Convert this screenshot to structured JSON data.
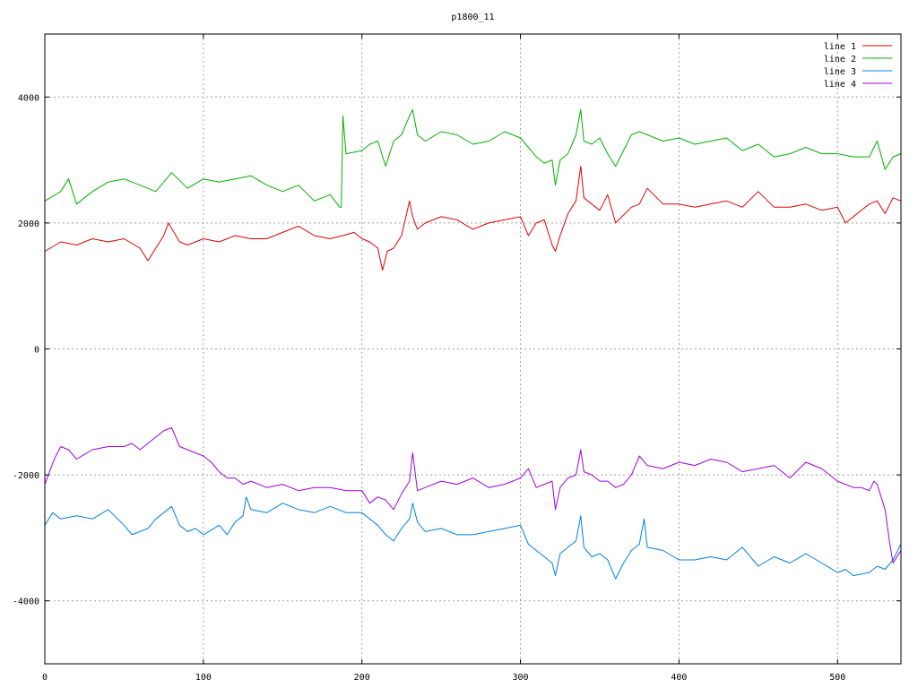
{
  "chart_data": {
    "type": "line",
    "title": "p1800_11",
    "xlabel": "",
    "ylabel": "",
    "xlim": [
      0,
      540
    ],
    "ylim": [
      -5000,
      5000
    ],
    "xticks": [
      0,
      100,
      200,
      300,
      400,
      500
    ],
    "yticks": [
      -4000,
      -2000,
      0,
      2000,
      4000
    ],
    "xtick_labels": [
      "0",
      "100",
      "200",
      "300",
      "400",
      "500"
    ],
    "ytick_labels": [
      "-4000",
      "-2000",
      "0",
      "2000",
      "4000"
    ],
    "grid": true,
    "legend_position": "top-right",
    "series": [
      {
        "name": "line 1",
        "color": "#e00000",
        "x": [
          0,
          10,
          20,
          30,
          40,
          50,
          60,
          65,
          70,
          75,
          78,
          85,
          90,
          100,
          110,
          120,
          130,
          140,
          150,
          160,
          170,
          180,
          188,
          195,
          200,
          205,
          210,
          213,
          216,
          220,
          225,
          230,
          232,
          235,
          240,
          250,
          260,
          270,
          280,
          290,
          300,
          305,
          310,
          315,
          320,
          322,
          325,
          330,
          335,
          338,
          340,
          345,
          350,
          355,
          360,
          370,
          375,
          380,
          390,
          400,
          410,
          420,
          430,
          440,
          450,
          460,
          470,
          480,
          490,
          500,
          505,
          510,
          520,
          525,
          530,
          535,
          540
        ],
        "y": [
          1550,
          1700,
          1650,
          1750,
          1700,
          1750,
          1600,
          1400,
          1600,
          1800,
          2000,
          1700,
          1650,
          1750,
          1700,
          1800,
          1750,
          1750,
          1850,
          1950,
          1800,
          1750,
          1800,
          1850,
          1750,
          1700,
          1600,
          1250,
          1550,
          1600,
          1800,
          2350,
          2100,
          1900,
          2000,
          2100,
          2050,
          1900,
          2000,
          2050,
          2100,
          1800,
          2000,
          2050,
          1650,
          1550,
          1800,
          2150,
          2350,
          2900,
          2400,
          2300,
          2200,
          2450,
          2000,
          2250,
          2300,
          2550,
          2300,
          2300,
          2250,
          2300,
          2350,
          2250,
          2500,
          2250,
          2250,
          2300,
          2200,
          2250,
          2000,
          2100,
          2300,
          2350,
          2150,
          2400,
          2350
        ]
      },
      {
        "name": "line 2",
        "color": "#00b000",
        "x": [
          0,
          10,
          15,
          20,
          30,
          40,
          50,
          60,
          70,
          80,
          90,
          100,
          110,
          120,
          130,
          140,
          150,
          160,
          170,
          180,
          186,
          187,
          188,
          190,
          200,
          205,
          210,
          215,
          220,
          225,
          230,
          232,
          235,
          240,
          250,
          260,
          270,
          280,
          290,
          300,
          310,
          315,
          320,
          322,
          325,
          330,
          335,
          338,
          340,
          345,
          350,
          355,
          360,
          370,
          375,
          380,
          390,
          400,
          410,
          420,
          430,
          440,
          450,
          460,
          470,
          480,
          490,
          500,
          510,
          520,
          525,
          530,
          535,
          540
        ],
        "y": [
          2350,
          2500,
          2700,
          2300,
          2500,
          2650,
          2700,
          2600,
          2500,
          2800,
          2550,
          2700,
          2650,
          2700,
          2750,
          2600,
          2500,
          2600,
          2350,
          2450,
          2250,
          2250,
          3700,
          3100,
          3150,
          3250,
          3300,
          2900,
          3300,
          3400,
          3700,
          3800,
          3400,
          3300,
          3450,
          3400,
          3250,
          3300,
          3450,
          3350,
          3050,
          2950,
          3000,
          2600,
          3000,
          3100,
          3400,
          3800,
          3300,
          3250,
          3350,
          3100,
          2900,
          3400,
          3450,
          3400,
          3300,
          3350,
          3250,
          3300,
          3350,
          3150,
          3250,
          3050,
          3100,
          3200,
          3100,
          3100,
          3050,
          3050,
          3300,
          2850,
          3050,
          3100
        ]
      },
      {
        "name": "line 3",
        "color": "#0080e0",
        "x": [
          0,
          5,
          10,
          20,
          30,
          40,
          50,
          55,
          60,
          65,
          70,
          75,
          80,
          85,
          90,
          95,
          100,
          110,
          115,
          120,
          125,
          127,
          130,
          140,
          150,
          160,
          170,
          180,
          190,
          200,
          205,
          210,
          215,
          220,
          225,
          230,
          232,
          235,
          240,
          250,
          260,
          270,
          280,
          290,
          300,
          305,
          310,
          315,
          320,
          322,
          325,
          330,
          335,
          338,
          340,
          345,
          350,
          355,
          360,
          365,
          370,
          375,
          378,
          380,
          390,
          400,
          410,
          420,
          430,
          440,
          450,
          460,
          470,
          480,
          490,
          500,
          505,
          510,
          520,
          525,
          530,
          535,
          540
        ],
        "y": [
          -2800,
          -2600,
          -2700,
          -2650,
          -2700,
          -2550,
          -2800,
          -2950,
          -2900,
          -2850,
          -2700,
          -2600,
          -2500,
          -2800,
          -2900,
          -2850,
          -2950,
          -2800,
          -2950,
          -2750,
          -2650,
          -2350,
          -2550,
          -2600,
          -2450,
          -2550,
          -2600,
          -2500,
          -2600,
          -2600,
          -2700,
          -2800,
          -2950,
          -3050,
          -2850,
          -2700,
          -2450,
          -2750,
          -2900,
          -2850,
          -2950,
          -2950,
          -2900,
          -2850,
          -2800,
          -3100,
          -3200,
          -3300,
          -3400,
          -3600,
          -3250,
          -3150,
          -3050,
          -2650,
          -3150,
          -3300,
          -3250,
          -3350,
          -3650,
          -3400,
          -3200,
          -3100,
          -2700,
          -3150,
          -3200,
          -3350,
          -3350,
          -3300,
          -3350,
          -3150,
          -3450,
          -3300,
          -3400,
          -3250,
          -3400,
          -3550,
          -3500,
          -3600,
          -3550,
          -3450,
          -3500,
          -3350,
          -3100
        ]
      },
      {
        "name": "line 4",
        "color": "#a000e0",
        "x": [
          0,
          3,
          6,
          10,
          15,
          20,
          30,
          40,
          50,
          55,
          60,
          65,
          70,
          75,
          80,
          85,
          90,
          95,
          100,
          105,
          110,
          115,
          120,
          125,
          130,
          140,
          150,
          160,
          170,
          180,
          190,
          200,
          205,
          210,
          215,
          220,
          225,
          230,
          232,
          235,
          240,
          250,
          260,
          270,
          280,
          290,
          300,
          305,
          310,
          315,
          320,
          322,
          325,
          330,
          335,
          338,
          340,
          345,
          350,
          355,
          360,
          365,
          370,
          375,
          380,
          390,
          400,
          410,
          420,
          430,
          440,
          450,
          460,
          470,
          480,
          490,
          500,
          505,
          510,
          515,
          520,
          523,
          525,
          530,
          533,
          535,
          540
        ],
        "y": [
          -2150,
          -1950,
          -1750,
          -1550,
          -1600,
          -1750,
          -1600,
          -1550,
          -1550,
          -1500,
          -1600,
          -1500,
          -1400,
          -1300,
          -1250,
          -1550,
          -1600,
          -1650,
          -1700,
          -1800,
          -1950,
          -2050,
          -2050,
          -2150,
          -2100,
          -2200,
          -2150,
          -2250,
          -2200,
          -2200,
          -2250,
          -2250,
          -2450,
          -2350,
          -2400,
          -2550,
          -2300,
          -2100,
          -1650,
          -2250,
          -2200,
          -2100,
          -2150,
          -2050,
          -2200,
          -2150,
          -2050,
          -1900,
          -2200,
          -2150,
          -2100,
          -2550,
          -2200,
          -2050,
          -2000,
          -1600,
          -1950,
          -2000,
          -2100,
          -2100,
          -2200,
          -2150,
          -2000,
          -1700,
          -1850,
          -1900,
          -1800,
          -1850,
          -1750,
          -1800,
          -1950,
          -1900,
          -1850,
          -2050,
          -1800,
          -1900,
          -2100,
          -2150,
          -2200,
          -2200,
          -2250,
          -2100,
          -2150,
          -2550,
          -3100,
          -3400,
          -3200
        ]
      }
    ]
  }
}
